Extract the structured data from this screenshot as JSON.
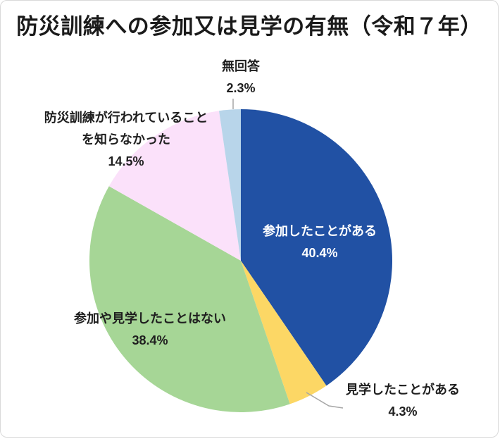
{
  "title": "防災訓練への参加又は見学の有無（令和７年）",
  "chart_data": {
    "type": "pie",
    "title": "防災訓練への参加又は見学の有無（令和７年）",
    "unit": "%",
    "start_angle_deg": 0,
    "direction": "clockwise",
    "legend": "none",
    "labels_on_chart": true,
    "slices": [
      {
        "key": "participated",
        "label": "参加したことがある",
        "value": 40.4,
        "color": "#2151A4",
        "label_placement": "inside"
      },
      {
        "key": "observed",
        "label": "見学したことがある",
        "value": 4.3,
        "color": "#FCD765",
        "label_placement": "outside"
      },
      {
        "key": "never",
        "label": "参加や見学したことはない",
        "value": 38.4,
        "color": "#A6D696",
        "label_placement": "on-slice"
      },
      {
        "key": "unknown",
        "label": "防災訓練が行われていることを知らなかった",
        "value": 14.5,
        "color": "#FBE1FA",
        "label_placement": "outside"
      },
      {
        "key": "no_answer",
        "label": "無回答",
        "value": 2.3,
        "color": "#B8D5EA",
        "label_placement": "outside"
      }
    ]
  },
  "callouts": {
    "no_answer": {
      "line1": "無回答",
      "line2": "2.3%"
    },
    "unknown": {
      "line1": "防災訓練が行われていること",
      "line2": "を知らなかった",
      "line3": "14.5%"
    },
    "participated": {
      "line1": "参加したことがある",
      "line2": "40.4%"
    },
    "never": {
      "line1": "参加や見学したことはない",
      "line2": "38.4%"
    },
    "observed": {
      "line1": "見学したことがある",
      "line2": "4.3%"
    }
  },
  "colors": {
    "background": "#ffffff",
    "border": "#d9d9d9",
    "title_text": "#1a1a1a",
    "label_text": "#1f1f1f",
    "label_text_inside": "#ffffff",
    "leader_line": "#a6a6a6"
  }
}
